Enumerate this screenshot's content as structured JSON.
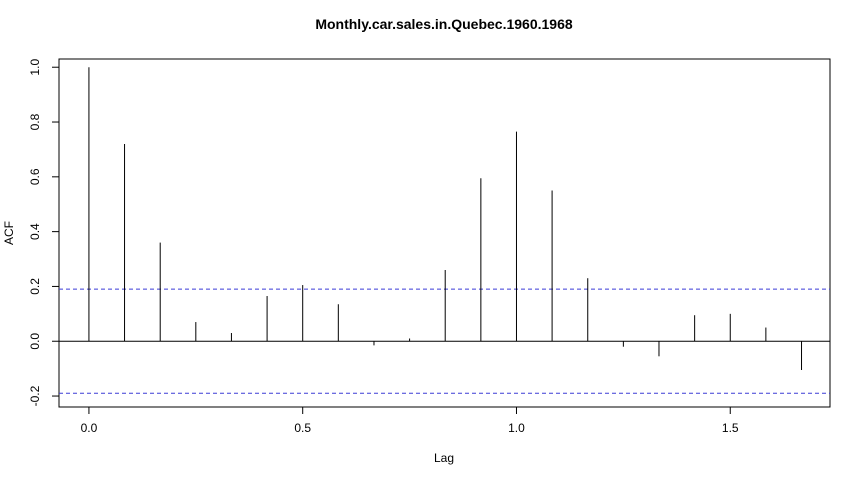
{
  "chart_data": {
    "type": "bar",
    "title": "Monthly.car.sales.in.Quebec.1960.1968",
    "xlabel": "Lag",
    "ylabel": "ACF",
    "xlim": [
      -0.07,
      1.7333
    ],
    "ylim": [
      -0.24,
      1.03
    ],
    "x_ticks": [
      0.0,
      0.5,
      1.0,
      1.5
    ],
    "x_tick_labels": [
      "0.0",
      "0.5",
      "1.0",
      "1.5"
    ],
    "y_ticks": [
      -0.2,
      0.0,
      0.2,
      0.4,
      0.6,
      0.8,
      1.0
    ],
    "y_tick_labels": [
      "-0.2",
      "0.0",
      "0.2",
      "0.4",
      "0.6",
      "0.8",
      "1.0"
    ],
    "confidence_bound": 0.19,
    "confidence_color": "#3b3bd6",
    "series": [
      {
        "lag": [
          0.0,
          0.0833,
          0.1667,
          0.25,
          0.3333,
          0.4167,
          0.5,
          0.5833,
          0.6667,
          0.75,
          0.8333,
          0.9167,
          1.0,
          1.0833,
          1.1667,
          1.25,
          1.3333,
          1.4167,
          1.5,
          1.5833,
          1.6667
        ],
        "acf": [
          1.0,
          0.72,
          0.36,
          0.07,
          0.03,
          0.165,
          0.205,
          0.135,
          -0.015,
          0.01,
          0.26,
          0.595,
          0.765,
          0.55,
          0.23,
          -0.02,
          -0.055,
          0.095,
          0.1,
          0.05,
          -0.105
        ]
      }
    ],
    "grid": false,
    "legend": "none"
  }
}
